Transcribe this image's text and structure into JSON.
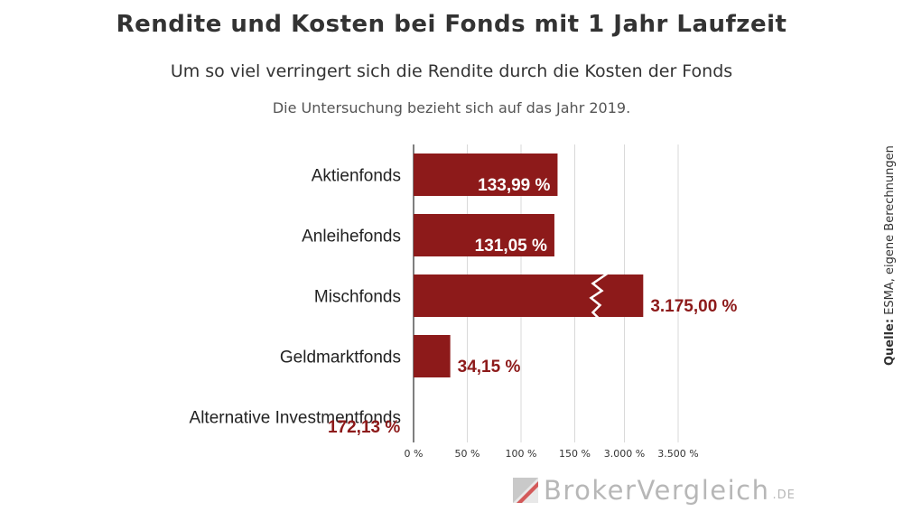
{
  "chart_data": {
    "type": "bar",
    "orientation": "horizontal",
    "title": "Rendite und Kosten bei Fonds mit 1 Jahr Laufzeit",
    "subtitle": "Um so viel verringert sich die Rendite durch die Kosten der Fonds",
    "note": "Die Untersuchung bezieht sich auf das Jahr 2019.",
    "categories": [
      "Aktienfonds",
      "Anleihefonds",
      "Mischfonds",
      "Geldmarktfonds",
      "Alternative Investmentfonds"
    ],
    "values": [
      133.99,
      131.05,
      3175.0,
      34.15,
      172.13
    ],
    "value_labels": [
      "133,99 %",
      "131,05 %",
      "3.175,00 %",
      "34,15 %",
      "172,13 %"
    ],
    "axis_break": {
      "after": 150,
      "before": 3000,
      "category": "Mischfonds"
    },
    "ticks": [
      {
        "value": 0,
        "label": "0 %"
      },
      {
        "value": 50,
        "label": "50 %"
      },
      {
        "value": 100,
        "label": "100 %"
      },
      {
        "value": 150,
        "label": "150 %"
      },
      {
        "value": 3000,
        "label": "3.000 %"
      },
      {
        "value": 3500,
        "label": "3.500 %"
      }
    ],
    "grid": true,
    "bar_color": "#8d1a1a",
    "label_inside_color": "#ffffff",
    "label_outside_color": "#8d1a1a"
  },
  "source": {
    "label": "Quelle:",
    "text": "ESMA, eigene Berechnungen"
  },
  "brand": {
    "name": "BrokerVergleich",
    "suffix": ".DE"
  }
}
